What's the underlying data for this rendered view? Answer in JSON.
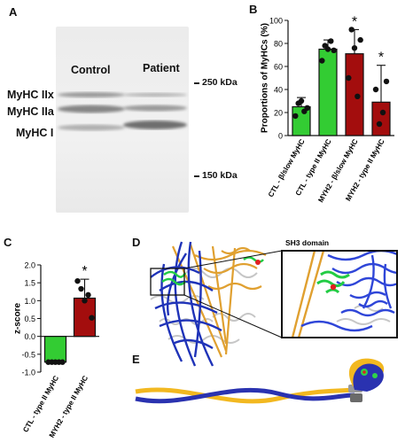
{
  "panel_labels": {
    "a": "A",
    "b": "B",
    "c": "C",
    "d": "D",
    "e": "E"
  },
  "panel_a": {
    "lanes": [
      "Control",
      "Patient"
    ],
    "bands": [
      "MyHC IIx",
      "MyHC IIa",
      "MyHC I"
    ],
    "markers": [
      "250 kDa",
      "150 kDa"
    ]
  },
  "panel_d": {
    "inset_title": "SH3 domain"
  },
  "colors": {
    "green": "#33cc33",
    "darkred": "#a30d0d",
    "blue": "#1f33b8",
    "gold": "#e8a820"
  },
  "chart_data": [
    {
      "panel": "B",
      "type": "bar",
      "ylabel": "Proportions of MyHCs (%)",
      "ylim": [
        0,
        100
      ],
      "yticks": [
        0,
        20,
        40,
        60,
        80,
        100
      ],
      "categories": [
        "CTL - β/slow MyHC",
        "CTL - type II MyHC",
        "MYH2 - β/slow MyHC",
        "MYH2 - type II MyHC"
      ],
      "values": [
        25,
        75,
        71,
        29
      ],
      "errors": [
        8,
        8,
        21,
        32
      ],
      "bar_colors": [
        "#33cc33",
        "#33cc33",
        "#a30d0d",
        "#a30d0d"
      ],
      "points": [
        [
          17,
          28,
          30,
          21,
          24
        ],
        [
          65,
          78,
          75,
          82,
          74
        ],
        [
          50,
          92,
          76,
          34,
          83
        ],
        [
          40,
          10,
          20,
          47
        ]
      ],
      "significance": [
        "",
        "",
        "*",
        "*"
      ]
    },
    {
      "panel": "C",
      "type": "bar",
      "ylabel": "z-score",
      "ylim": [
        -1.0,
        2.0
      ],
      "yticks": [
        -1.0,
        -0.5,
        0.0,
        0.5,
        1.0,
        1.5,
        2.0
      ],
      "ytick_labels": [
        "-1.0",
        "-0.5",
        "0.0",
        "0.5",
        "1.0",
        "1.5",
        "2.0"
      ],
      "categories": [
        "CTL - type II MyHC",
        "MYH2 - type II MyHC"
      ],
      "values": [
        -0.72,
        1.07
      ],
      "errors": [
        0.0,
        0.53
      ],
      "bar_colors": [
        "#33cc33",
        "#a30d0d"
      ],
      "points": [
        [
          -0.72,
          -0.72,
          -0.72,
          -0.72,
          -0.72
        ],
        [
          1.55,
          1.33,
          1.0,
          1.16,
          0.52
        ]
      ],
      "significance": [
        "",
        "*"
      ]
    }
  ]
}
